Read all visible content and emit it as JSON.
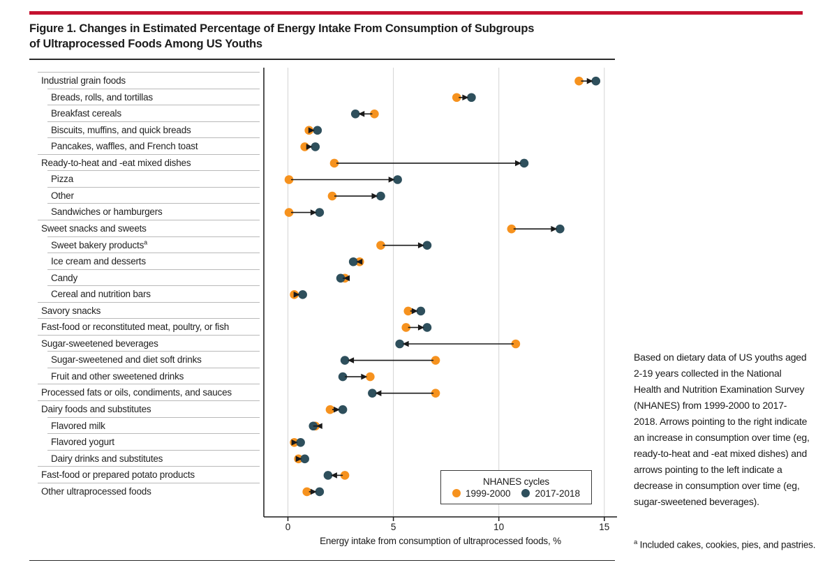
{
  "header": {
    "title_line1": "Figure 1. Changes in Estimated Percentage of Energy Intake From Consumption of Subgroups",
    "title_line2": "of Ultraprocessed Foods Among US Youths"
  },
  "chart_data": {
    "type": "scatter",
    "subtype": "arrow-dumbbell",
    "title": "Changes in Estimated Percentage of Energy Intake From Consumption of Subgroups of Ultraprocessed Foods Among US Youths",
    "xlabel": "Energy intake from consumption of ultraprocessed foods, %",
    "xlim": [
      0,
      15
    ],
    "xticks": [
      0,
      5,
      10,
      15
    ],
    "grid": "vertical",
    "legend": {
      "title": "NHANES cycles",
      "position": "inside-bottom-right",
      "entries": [
        {
          "label": "1999-2000",
          "color": "#f6921e"
        },
        {
          "label": "2017-2018",
          "color": "#2e4f5c"
        }
      ]
    },
    "rows": [
      {
        "label": "Industrial grain foods",
        "indent": false,
        "v1999": 13.8,
        "v2017": 14.6,
        "arrow_head": "2017"
      },
      {
        "label": "Breads, rolls, and tortillas",
        "indent": true,
        "v1999": 8.0,
        "v2017": 8.7,
        "arrow_head": "2017"
      },
      {
        "label": "Breakfast cereals",
        "indent": true,
        "v1999": 4.1,
        "v2017": 3.2,
        "arrow_head": "2017"
      },
      {
        "label": "Biscuits, muffins, and quick breads",
        "indent": true,
        "v1999": 1.0,
        "v2017": 1.4,
        "arrow_head": "2017"
      },
      {
        "label": "Pancakes, waffles, and French toast",
        "indent": true,
        "v1999": 0.8,
        "v2017": 1.3,
        "arrow_head": "2017"
      },
      {
        "label": "Ready-to-heat and -eat mixed dishes",
        "indent": false,
        "v1999": 2.2,
        "v2017": 11.2,
        "arrow_head": "2017"
      },
      {
        "label": "Pizza",
        "indent": true,
        "v1999": 0.05,
        "v2017": 5.2,
        "arrow_head": "2017"
      },
      {
        "label": "Other",
        "indent": true,
        "v1999": 2.1,
        "v2017": 4.4,
        "arrow_head": "2017"
      },
      {
        "label": "Sandwiches or hamburgers",
        "indent": true,
        "v1999": 0.05,
        "v2017": 1.5,
        "arrow_head": "2017"
      },
      {
        "label": "Sweet snacks and sweets",
        "indent": false,
        "v1999": 10.6,
        "v2017": 12.9,
        "arrow_head": "2017"
      },
      {
        "label": "Sweet bakery products",
        "sup": "a",
        "indent": true,
        "v1999": 4.4,
        "v2017": 6.6,
        "arrow_head": "2017"
      },
      {
        "label": "Ice cream and desserts",
        "indent": true,
        "v1999": 3.4,
        "v2017": 3.1,
        "arrow_head": "2017"
      },
      {
        "label": "Candy",
        "indent": true,
        "v1999": 2.7,
        "v2017": 2.5,
        "arrow_head": "2017"
      },
      {
        "label": "Cereal and nutrition bars",
        "indent": true,
        "v1999": 0.3,
        "v2017": 0.7,
        "arrow_head": "2017"
      },
      {
        "label": "Savory snacks",
        "indent": false,
        "v1999": 5.7,
        "v2017": 6.3,
        "arrow_head": "2017"
      },
      {
        "label": "Fast-food or reconstituted meat, poultry, or fish",
        "indent": false,
        "v1999": 5.6,
        "v2017": 6.6,
        "arrow_head": "2017"
      },
      {
        "label": "Sugar-sweetened beverages",
        "indent": false,
        "v1999": 10.8,
        "v2017": 5.3,
        "arrow_head": "2017"
      },
      {
        "label": "Sugar-sweetened and diet soft drinks",
        "indent": true,
        "v1999": 7.0,
        "v2017": 2.7,
        "arrow_head": "2017"
      },
      {
        "label": "Fruit and other sweetened drinks",
        "indent": true,
        "v1999": 3.9,
        "v2017": 2.6,
        "arrow_head": "1999"
      },
      {
        "label": "Processed fats or oils, condiments, and sauces",
        "indent": false,
        "v1999": 7.0,
        "v2017": 4.0,
        "arrow_head": "2017"
      },
      {
        "label": "Dairy foods and substitutes",
        "indent": false,
        "v1999": 2.0,
        "v2017": 2.6,
        "arrow_head": "2017"
      },
      {
        "label": "Flavored milk",
        "indent": true,
        "v1999": 1.3,
        "v2017": 1.2,
        "arrow_head": "2017"
      },
      {
        "label": "Flavored yogurt",
        "indent": true,
        "v1999": 0.3,
        "v2017": 0.6,
        "arrow_head": "2017"
      },
      {
        "label": "Dairy drinks and substitutes",
        "indent": true,
        "v1999": 0.5,
        "v2017": 0.8,
        "arrow_head": "2017"
      },
      {
        "label": "Fast-food or prepared potato products",
        "indent": false,
        "v1999": 2.7,
        "v2017": 1.9,
        "arrow_head": "2017"
      },
      {
        "label": "Other ultraprocessed foods",
        "indent": false,
        "v1999": 0.9,
        "v2017": 1.5,
        "arrow_head": "2017"
      }
    ]
  },
  "caption": {
    "text": "Based on dietary data of US youths aged 2-19 years collected in the National Health and Nutrition Examination Survey (NHANES) from 1999-2000 to 2017-2018. Arrows pointing to the right indicate an increase in consumption over time (eg, ready-to-heat and -eat mixed dishes) and arrows pointing to the left indicate a decrease in consumption over time (eg, sugar-sweetened beverages).",
    "footnote_marker": "a",
    "footnote_text": " Included cakes, cookies, pies, and pastries."
  },
  "colors": {
    "accent_red": "#c41230",
    "orange_1999": "#f6921e",
    "teal_2017": "#2e4f5c",
    "arrow": "#1a1a1a",
    "gridline": "#d4d4d4",
    "axis": "#1a1a1a",
    "separator": "#b9b9b9"
  }
}
